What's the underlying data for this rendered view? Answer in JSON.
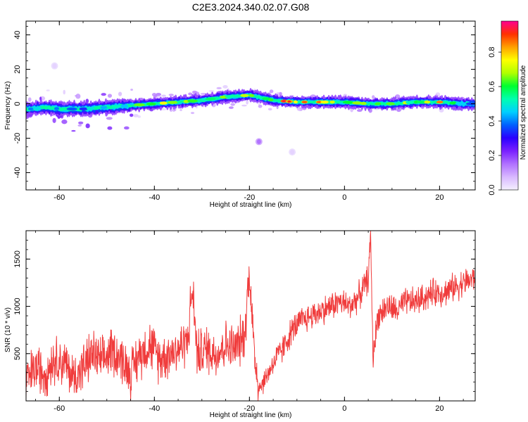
{
  "title": "C2E3.2024.340.02.07.G08",
  "colors": {
    "snr_line": "#f03c3c",
    "spectrogram_stops": [
      "#f4f0ff",
      "#d8b8ff",
      "#b070ff",
      "#7a20ff",
      "#2a00ff",
      "#0060ff",
      "#00d0ff",
      "#00ffb0",
      "#00ff30",
      "#b0ff00",
      "#ffff00",
      "#ffa000",
      "#ff3000",
      "#ff0090"
    ]
  },
  "chart_data": [
    {
      "type": "heatmap",
      "xlabel": "Height of straight line (km)",
      "ylabel": "Frequency (Hz)",
      "xlim": [
        -67,
        27.5
      ],
      "ylim": [
        -50,
        48
      ],
      "xticks": [
        -60,
        -40,
        -20,
        0,
        20
      ],
      "yticks": [
        -40,
        -20,
        0,
        20,
        40
      ],
      "colorbar": {
        "label": "Normalized spectral amplitude",
        "range": [
          0,
          0.98
        ],
        "ticks": [
          0.0,
          0.2,
          0.4,
          0.6,
          0.8
        ]
      },
      "ridge": {
        "x": [
          -66,
          -63,
          -60,
          -55,
          -50,
          -45,
          -40,
          -35,
          -30,
          -25,
          -20,
          -18,
          -15,
          -10,
          -5,
          0,
          5,
          10,
          15,
          20,
          25,
          27
        ],
        "frequency": [
          -3,
          -2,
          -3,
          -3,
          -2,
          -1,
          0,
          1,
          2,
          4,
          5,
          4,
          2,
          1,
          1,
          1,
          0,
          0,
          1,
          1,
          0,
          0
        ],
        "amplitude": [
          0.45,
          0.55,
          0.5,
          0.45,
          0.55,
          0.6,
          0.75,
          0.8,
          0.6,
          0.65,
          0.7,
          0.7,
          0.85,
          0.95,
          0.95,
          0.8,
          0.7,
          0.75,
          0.7,
          0.75,
          0.5,
          0.45
        ]
      },
      "isolated_blobs": [
        {
          "x": -18,
          "frequency": -22,
          "amplitude": 0.15
        },
        {
          "x": -11,
          "frequency": -28,
          "amplitude": 0.04
        },
        {
          "x": -61,
          "frequency": 22,
          "amplitude": 0.04
        }
      ]
    },
    {
      "type": "line",
      "xlabel": "Height of straight line (km)",
      "ylabel": "SNR (10 * v/v)",
      "xlim": [
        -67,
        27.5
      ],
      "ylim": [
        0,
        1800
      ],
      "xticks": [
        -60,
        -40,
        -20,
        0,
        20
      ],
      "yticks": [
        500,
        1000,
        1500
      ],
      "series": [
        {
          "x": [
            -67,
            -65,
            -63,
            -61,
            -59,
            -57,
            -55,
            -53,
            -51,
            -49,
            -47,
            -45,
            -43,
            -41,
            -39,
            -37,
            -35,
            -33,
            -32,
            -31,
            -29,
            -27,
            -25,
            -23,
            -21,
            -20,
            -19,
            -18,
            -17,
            -15,
            -13,
            -11,
            -9,
            -7,
            -5,
            -3,
            -1,
            1,
            3,
            5,
            5.5,
            6,
            7,
            9,
            11,
            13,
            15,
            17,
            19,
            21,
            23,
            25,
            27.5
          ],
          "values": [
            200,
            350,
            300,
            450,
            400,
            250,
            350,
            500,
            400,
            550,
            450,
            300,
            500,
            600,
            450,
            500,
            550,
            650,
            1200,
            500,
            550,
            500,
            600,
            550,
            700,
            1400,
            500,
            150,
            200,
            400,
            550,
            750,
            850,
            900,
            950,
            1000,
            1050,
            1000,
            1100,
            1300,
            1750,
            450,
            900,
            1000,
            950,
            1050,
            1050,
            1100,
            1150,
            1150,
            1200,
            1250,
            1300
          ]
        }
      ]
    }
  ]
}
